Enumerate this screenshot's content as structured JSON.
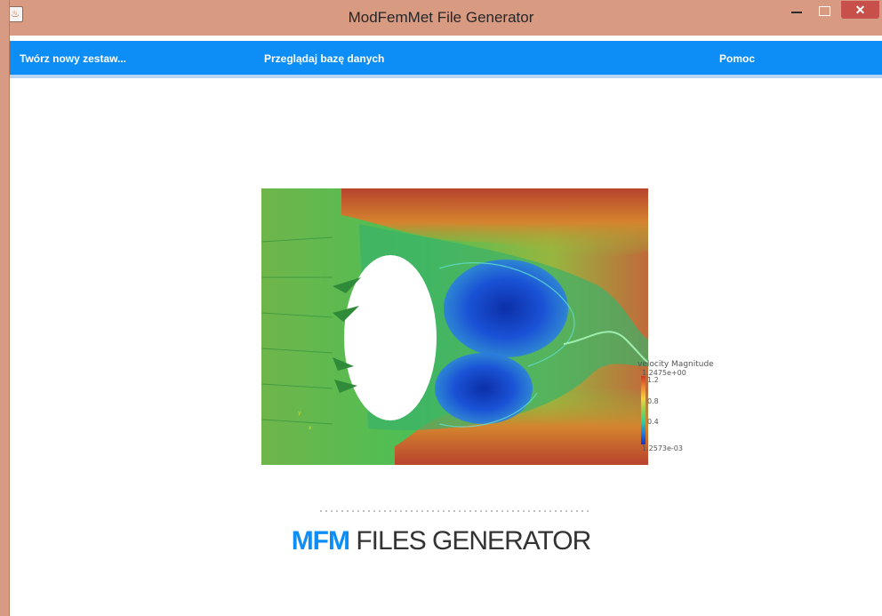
{
  "window": {
    "title": "ModFemMet File Generator",
    "close_symbol": "✕",
    "app_icon_glyph": "♨"
  },
  "menu": {
    "items": [
      {
        "label": "Twórz nowy zestaw..."
      },
      {
        "label": "Przeglądaj bazę danych"
      },
      {
        "label": "Pomoc"
      }
    ]
  },
  "visualization": {
    "legend_title": "velocity Magnitude",
    "legend_sub": "1.2475e+00",
    "legend_ticks": [
      "1.2",
      "0.8",
      "0.4"
    ],
    "legend_min": "1.2573e-03",
    "axis_x": "x",
    "axis_y": "y"
  },
  "logo": {
    "brand": "MFM",
    "text": "FILES GENERATOR"
  },
  "colors": {
    "titlebar": "#d99a82",
    "menubar": "#0d8ef7",
    "close_button": "#c7504b",
    "logo_accent": "#0d8ef7"
  }
}
